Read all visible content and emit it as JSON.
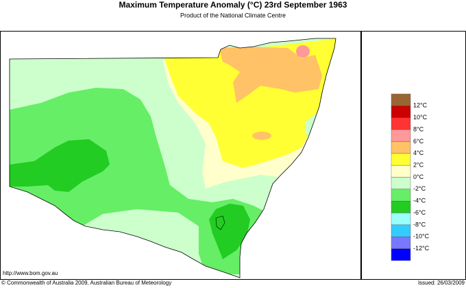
{
  "title": "Maximum Temperature Anomaly (°C)  23rd September 1963",
  "subtitle": "Product of the National Climate Centre",
  "legend": {
    "labels": [
      "12°C",
      "10°C",
      "8°C",
      "6°C",
      "4°C",
      "2°C",
      "0°C",
      "-2°C",
      "-4°C",
      "-6°C",
      "-8°C",
      "-10°C",
      "-12°C"
    ],
    "colors": [
      "#996633",
      "#cc0000",
      "#ff3333",
      "#ff9999",
      "#ffc266",
      "#ffff33",
      "#ffffcc",
      "#ccffcc",
      "#66ee66",
      "#22cc22",
      "#99ffff",
      "#33ccff",
      "#7777ff",
      "#0000ff"
    ]
  },
  "footer": {
    "url": "http://www.bom.gov.au",
    "copyright": "© Commonwealth of Australia 2009, Australian Bureau of Meteorology",
    "issued": "Issued: 26/03/2009"
  }
}
